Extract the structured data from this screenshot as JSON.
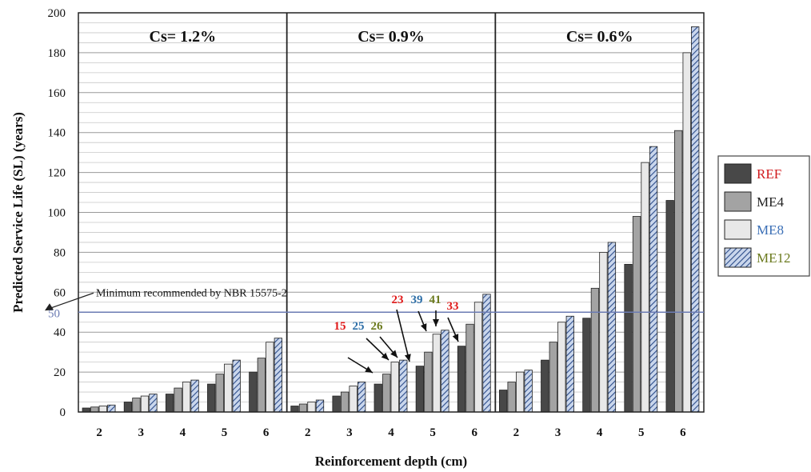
{
  "chart_data": {
    "type": "bar",
    "ylabel": "Predicted Service Life (SL) (years)",
    "xlabel": "Reinforcement depth (cm)",
    "ylim": [
      0,
      200
    ],
    "yticks": [
      0,
      20,
      40,
      60,
      80,
      100,
      120,
      140,
      160,
      180,
      200
    ],
    "grid": true,
    "legend_position": "right",
    "categories": [
      "2",
      "3",
      "4",
      "5",
      "6"
    ],
    "panels": [
      {
        "title": "Cs= 1.2%",
        "series": [
          {
            "name": "REF",
            "values": [
              2,
              5,
              9,
              14,
              20
            ]
          },
          {
            "name": "ME4",
            "values": [
              2.5,
              7,
              12,
              19,
              27
            ]
          },
          {
            "name": "ME8",
            "values": [
              3,
              8,
              15,
              24,
              35
            ]
          },
          {
            "name": "ME12",
            "values": [
              3.5,
              9,
              16,
              26,
              37
            ]
          }
        ]
      },
      {
        "title": "Cs= 0.9%",
        "series": [
          {
            "name": "REF",
            "values": [
              3,
              8,
              14,
              23,
              33
            ]
          },
          {
            "name": "ME4",
            "values": [
              4,
              10,
              19,
              30,
              44
            ]
          },
          {
            "name": "ME8",
            "values": [
              5,
              13,
              25,
              39,
              55
            ]
          },
          {
            "name": "ME12",
            "values": [
              6,
              15,
              26,
              41,
              59
            ]
          }
        ]
      },
      {
        "title": "Cs= 0.6%",
        "series": [
          {
            "name": "REF",
            "values": [
              11,
              26,
              47,
              74,
              106
            ]
          },
          {
            "name": "ME4",
            "values": [
              15,
              35,
              62,
              98,
              141
            ]
          },
          {
            "name": "ME8",
            "values": [
              20,
              45,
              80,
              125,
              180
            ]
          },
          {
            "name": "ME12",
            "values": [
              21,
              48,
              85,
              133,
              193
            ]
          }
        ]
      }
    ],
    "reference_line": {
      "value": 50,
      "label": "Minimum  recommended by NBR 15575-2",
      "axis_label": "50"
    },
    "annotations": [
      {
        "text": "15",
        "color": "#e01a1a"
      },
      {
        "text": "25",
        "color": "#2e6fa8"
      },
      {
        "text": "26",
        "color": "#6b7a1e"
      },
      {
        "text": "23",
        "color": "#e01a1a"
      },
      {
        "text": "39",
        "color": "#2e6fa8"
      },
      {
        "text": "41",
        "color": "#6b7a1e"
      },
      {
        "text": "33",
        "color": "#e01a1a"
      }
    ],
    "legend_colors": {
      "REF": "#d0191c",
      "ME4": "#222222",
      "ME8": "#3b6fb6",
      "ME12": "#6b7a1e"
    },
    "bar_colors": {
      "REF": "#484848",
      "ME4": "#a3a3a3",
      "ME8": "#e8e8e8",
      "ME12": "#c9d6ec"
    },
    "reference_line_color": "#6b7bb3"
  }
}
